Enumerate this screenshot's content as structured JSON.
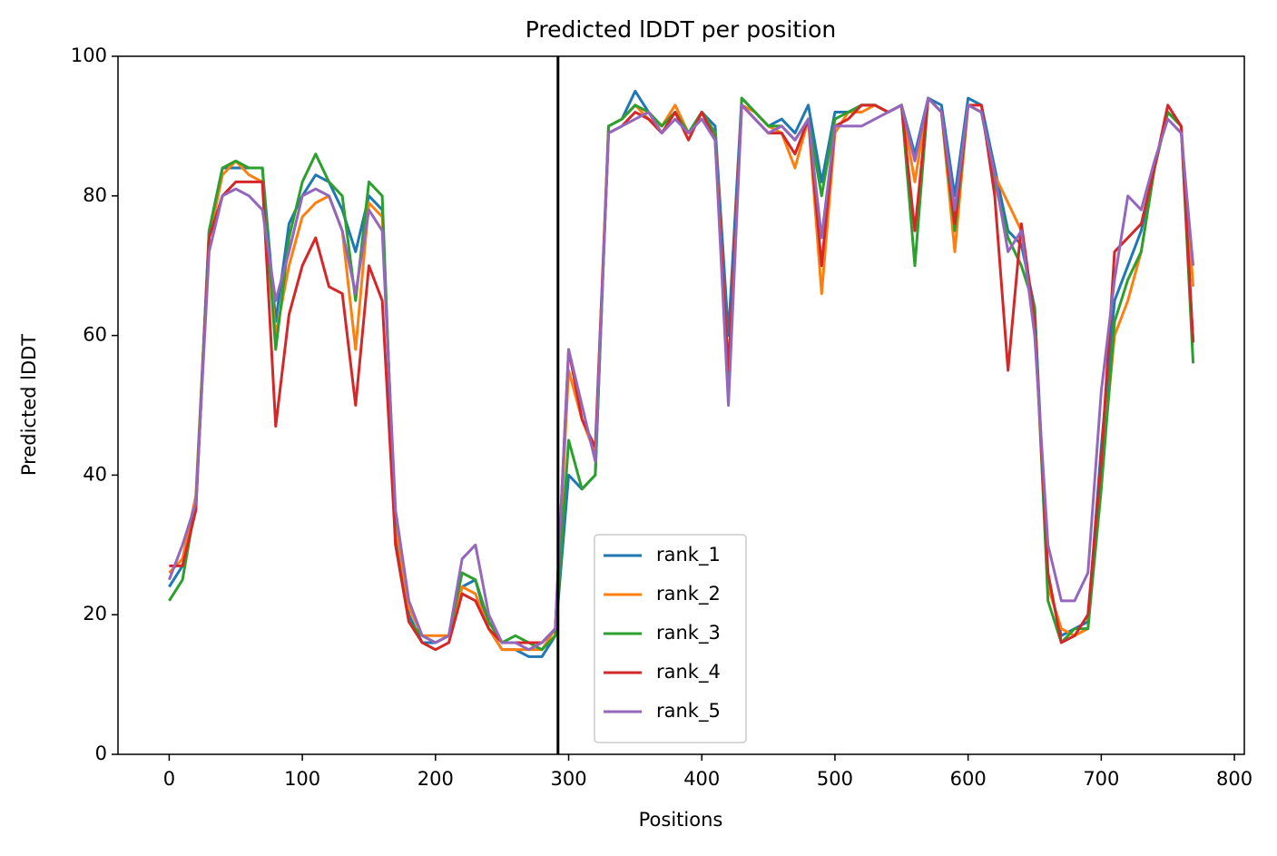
{
  "chart_data": {
    "type": "line",
    "title": "Predicted lDDT per position",
    "xlabel": "Positions",
    "ylabel": "Predicted lDDT",
    "x": [
      0,
      10,
      20,
      30,
      40,
      50,
      60,
      70,
      80,
      90,
      100,
      110,
      120,
      130,
      140,
      150,
      160,
      170,
      180,
      190,
      200,
      210,
      220,
      230,
      240,
      250,
      260,
      270,
      280,
      290,
      300,
      310,
      320,
      330,
      340,
      350,
      360,
      370,
      380,
      390,
      400,
      410,
      420,
      430,
      440,
      450,
      460,
      470,
      480,
      490,
      500,
      510,
      520,
      530,
      540,
      550,
      560,
      570,
      580,
      590,
      600,
      610,
      620,
      630,
      640,
      650,
      660,
      670,
      680,
      690,
      700,
      710,
      720,
      730,
      740,
      750,
      760,
      769
    ],
    "series": [
      {
        "name": "rank_1",
        "color": "#1f77b4",
        "values": [
          24,
          27,
          35,
          75,
          84,
          84,
          84,
          84,
          62,
          76,
          80,
          83,
          82,
          78,
          72,
          80,
          78,
          32,
          20,
          16,
          16,
          17,
          24,
          25,
          18,
          15,
          15,
          14,
          14,
          17,
          40,
          38,
          40,
          90,
          91,
          95,
          92,
          90,
          92,
          89,
          92,
          90,
          60,
          94,
          92,
          90,
          91,
          89,
          93,
          82,
          92,
          92,
          93,
          93,
          92,
          93,
          86,
          94,
          93,
          80,
          94,
          93,
          84,
          75,
          73,
          64,
          25,
          17,
          18,
          19,
          44,
          65,
          70,
          75,
          84,
          92,
          90,
          59
        ]
      },
      {
        "name": "rank_2",
        "color": "#ff7f0e",
        "values": [
          26,
          28,
          37,
          74,
          83,
          85,
          83,
          82,
          60,
          70,
          77,
          79,
          80,
          75,
          58,
          79,
          77,
          33,
          21,
          17,
          17,
          17,
          24,
          23,
          18,
          15,
          15,
          15,
          15,
          18,
          55,
          48,
          43,
          90,
          91,
          93,
          91,
          90,
          93,
          89,
          92,
          89,
          55,
          93,
          92,
          90,
          89,
          84,
          91,
          66,
          89,
          92,
          92,
          93,
          92,
          93,
          82,
          94,
          92,
          72,
          93,
          92,
          83,
          79,
          75,
          62,
          24,
          18,
          17,
          18,
          40,
          60,
          65,
          72,
          84,
          92,
          90,
          67
        ]
      },
      {
        "name": "rank_3",
        "color": "#2ca02c",
        "values": [
          22,
          25,
          36,
          75,
          84,
          85,
          84,
          84,
          58,
          74,
          82,
          86,
          82,
          80,
          65,
          82,
          80,
          30,
          19,
          17,
          16,
          17,
          26,
          25,
          19,
          16,
          17,
          16,
          15,
          17,
          45,
          38,
          40,
          90,
          91,
          93,
          92,
          90,
          92,
          89,
          92,
          89,
          52,
          94,
          92,
          90,
          90,
          88,
          91,
          80,
          91,
          92,
          93,
          93,
          92,
          93,
          70,
          94,
          92,
          75,
          93,
          92,
          82,
          74,
          70,
          64,
          22,
          16,
          18,
          18,
          38,
          62,
          68,
          72,
          84,
          92,
          90,
          56
        ]
      },
      {
        "name": "rank_4",
        "color": "#d62728",
        "values": [
          27,
          27,
          35,
          74,
          80,
          82,
          82,
          82,
          47,
          63,
          70,
          74,
          67,
          66,
          50,
          70,
          65,
          30,
          19,
          16,
          15,
          16,
          23,
          22,
          18,
          16,
          16,
          16,
          16,
          18,
          58,
          48,
          44,
          89,
          90,
          92,
          91,
          89,
          92,
          88,
          92,
          88,
          55,
          93,
          91,
          89,
          89,
          86,
          91,
          70,
          90,
          91,
          93,
          93,
          92,
          93,
          75,
          94,
          92,
          76,
          93,
          93,
          80,
          55,
          76,
          62,
          26,
          16,
          17,
          20,
          42,
          72,
          74,
          76,
          84,
          93,
          90,
          59
        ]
      },
      {
        "name": "rank_5",
        "color": "#9467bd",
        "values": [
          25,
          30,
          36,
          72,
          80,
          81,
          80,
          78,
          65,
          72,
          80,
          81,
          80,
          75,
          66,
          78,
          75,
          35,
          22,
          17,
          16,
          17,
          28,
          30,
          20,
          16,
          16,
          15,
          16,
          18,
          58,
          50,
          42,
          89,
          90,
          91,
          92,
          89,
          91,
          89,
          91,
          88,
          50,
          93,
          91,
          89,
          90,
          88,
          91,
          74,
          90,
          90,
          90,
          91,
          92,
          93,
          85,
          94,
          92,
          78,
          93,
          92,
          83,
          72,
          75,
          60,
          30,
          22,
          22,
          26,
          52,
          68,
          80,
          78,
          85,
          91,
          89,
          70
        ]
      }
    ],
    "vlines": [
      292
    ],
    "xlim": [
      -38.45,
      807.45
    ],
    "xticks": [
      0,
      100,
      200,
      300,
      400,
      500,
      600,
      700,
      800
    ],
    "ylim": [
      0,
      100
    ],
    "yticks": [
      0,
      20,
      40,
      60,
      80,
      100
    ],
    "grid": false,
    "legend": "lower center"
  }
}
